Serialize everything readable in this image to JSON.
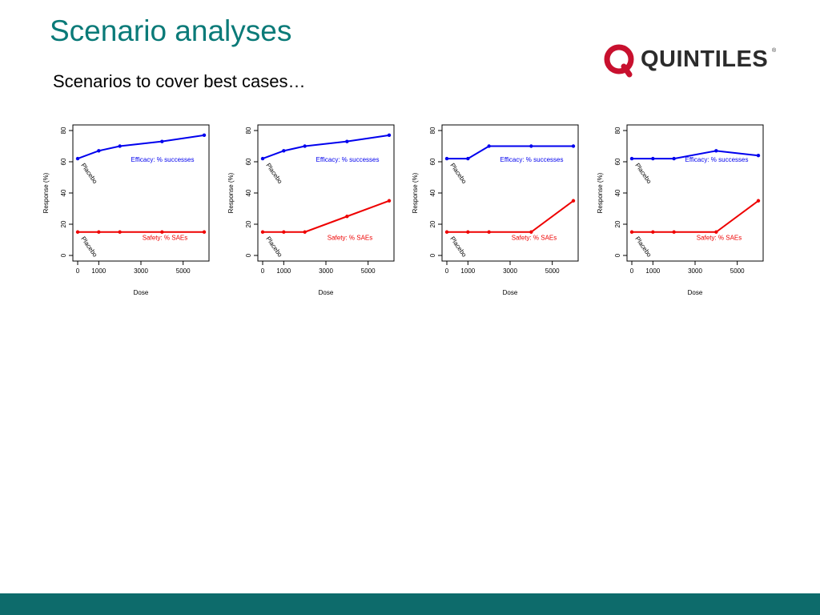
{
  "slide": {
    "title": "Scenario analyses",
    "subtitle": "Scenarios to cover best cases…"
  },
  "logo": {
    "text": "QUINTILES",
    "trademark": "®",
    "ring_color": "#c8102e"
  },
  "colors": {
    "title": "#0a7a78",
    "footer": "#0d6b6b",
    "efficacy": "#0000ee",
    "safety": "#ee0000"
  },
  "chart_data": [
    {
      "type": "line",
      "xlabel": "Dose",
      "ylabel": "Response (%)",
      "xlim": [
        0,
        6000
      ],
      "ylim": [
        0,
        80
      ],
      "xticks": [
        0,
        1000,
        3000,
        5000
      ],
      "yticks": [
        0,
        20,
        40,
        60,
        80
      ],
      "x": [
        0,
        1000,
        2000,
        4000,
        6000
      ],
      "series": [
        {
          "name": "Efficacy: % successes",
          "color": "#0000ee",
          "values": [
            62,
            67,
            70,
            73,
            77
          ]
        },
        {
          "name": "Safety: % SAEs",
          "color": "#ee0000",
          "values": [
            15,
            15,
            15,
            15,
            15
          ]
        }
      ],
      "annotations": [
        "Placebo",
        "Placebo"
      ]
    },
    {
      "type": "line",
      "xlabel": "Dose",
      "ylabel": "Response (%)",
      "xlim": [
        0,
        6000
      ],
      "ylim": [
        0,
        80
      ],
      "xticks": [
        0,
        1000,
        3000,
        5000
      ],
      "yticks": [
        0,
        20,
        40,
        60,
        80
      ],
      "x": [
        0,
        1000,
        2000,
        4000,
        6000
      ],
      "series": [
        {
          "name": "Efficacy: % successes",
          "color": "#0000ee",
          "values": [
            62,
            67,
            70,
            73,
            77
          ]
        },
        {
          "name": "Safety: % SAEs",
          "color": "#ee0000",
          "values": [
            15,
            15,
            15,
            25,
            35
          ]
        }
      ],
      "annotations": [
        "Placebo",
        "Placebo"
      ]
    },
    {
      "type": "line",
      "xlabel": "Dose",
      "ylabel": "Response (%)",
      "xlim": [
        0,
        6000
      ],
      "ylim": [
        0,
        80
      ],
      "xticks": [
        0,
        1000,
        3000,
        5000
      ],
      "yticks": [
        0,
        20,
        40,
        60,
        80
      ],
      "x": [
        0,
        1000,
        2000,
        4000,
        6000
      ],
      "series": [
        {
          "name": "Efficacy: % successes",
          "color": "#0000ee",
          "values": [
            62,
            62,
            70,
            70,
            70
          ]
        },
        {
          "name": "Safety: % SAEs",
          "color": "#ee0000",
          "values": [
            15,
            15,
            15,
            15,
            35
          ]
        }
      ],
      "annotations": [
        "Placebo",
        "Placebo"
      ]
    },
    {
      "type": "line",
      "xlabel": "Dose",
      "ylabel": "Response (%)",
      "xlim": [
        0,
        6000
      ],
      "ylim": [
        0,
        80
      ],
      "xticks": [
        0,
        1000,
        3000,
        5000
      ],
      "yticks": [
        0,
        20,
        40,
        60,
        80
      ],
      "x": [
        0,
        1000,
        2000,
        4000,
        6000
      ],
      "series": [
        {
          "name": "Efficacy: % successes",
          "color": "#0000ee",
          "values": [
            62,
            62,
            62,
            67,
            64
          ]
        },
        {
          "name": "Safety: % SAEs",
          "color": "#ee0000",
          "values": [
            15,
            15,
            15,
            15,
            35
          ]
        }
      ],
      "annotations": [
        "Placebo",
        "Placebo"
      ]
    }
  ]
}
